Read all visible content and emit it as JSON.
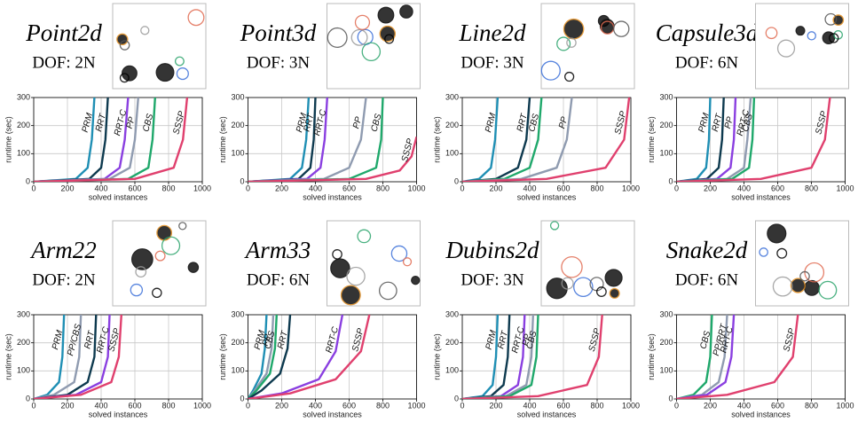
{
  "chart_data": [
    {
      "type": "line",
      "title": "Point2d",
      "subtitle": "DOF: 2N",
      "x_label": "solved instances",
      "y_label": "runtime (sec)",
      "xlim": [
        0,
        1000
      ],
      "xticks": [
        0,
        200,
        400,
        600,
        800,
        1000
      ],
      "ylim": [
        0,
        300
      ],
      "yticks": [
        0,
        100,
        200,
        300
      ],
      "grid": true,
      "series": [
        {
          "name": "PRM",
          "color": "#1f8fb4",
          "x": [
            0,
            250,
            320,
            345,
            360
          ],
          "values": [
            0,
            10,
            50,
            150,
            300
          ]
        },
        {
          "name": "RRT",
          "color": "#0e3a4f",
          "x": [
            0,
            330,
            400,
            425,
            440
          ],
          "values": [
            0,
            10,
            50,
            150,
            300
          ]
        },
        {
          "name": "RRT-C",
          "color": "#8a3fe0",
          "x": [
            0,
            420,
            510,
            540,
            560
          ],
          "values": [
            0,
            10,
            50,
            150,
            300
          ]
        },
        {
          "name": "PP",
          "color": "#8f9bb0",
          "x": [
            0,
            450,
            570,
            600,
            620
          ],
          "values": [
            0,
            10,
            50,
            150,
            300
          ]
        },
        {
          "name": "CBS",
          "color": "#1fa86b",
          "x": [
            0,
            560,
            680,
            705,
            720
          ],
          "values": [
            0,
            10,
            50,
            150,
            300
          ]
        },
        {
          "name": "SSSP",
          "color": "#e0406e",
          "x": [
            0,
            600,
            830,
            885,
            910
          ],
          "values": [
            0,
            10,
            50,
            150,
            300
          ]
        }
      ]
    },
    {
      "type": "line",
      "title": "Point3d",
      "subtitle": "DOF: 3N",
      "x_label": "solved instances",
      "y_label": "runtime (sec)",
      "xlim": [
        0,
        1000
      ],
      "xticks": [
        0,
        200,
        400,
        600,
        800,
        1000
      ],
      "ylim": [
        0,
        300
      ],
      "yticks": [
        0,
        100,
        200,
        300
      ],
      "grid": true,
      "series": [
        {
          "name": "PRM",
          "color": "#1f8fb4",
          "x": [
            0,
            250,
            320,
            345,
            360
          ],
          "values": [
            0,
            10,
            50,
            150,
            300
          ]
        },
        {
          "name": "RRT",
          "color": "#0e3a4f",
          "x": [
            0,
            300,
            370,
            390,
            400
          ],
          "values": [
            0,
            10,
            50,
            150,
            300
          ]
        },
        {
          "name": "RRT-C",
          "color": "#8a3fe0",
          "x": [
            0,
            350,
            430,
            455,
            470
          ],
          "values": [
            0,
            10,
            50,
            150,
            300
          ]
        },
        {
          "name": "PP",
          "color": "#8f9bb0",
          "x": [
            0,
            450,
            600,
            670,
            700
          ],
          "values": [
            0,
            10,
            50,
            150,
            300
          ]
        },
        {
          "name": "CBS",
          "color": "#1fa86b",
          "x": [
            0,
            600,
            760,
            790,
            800
          ],
          "values": [
            0,
            10,
            50,
            150,
            300
          ]
        },
        {
          "name": "SSSP",
          "color": "#e0406e",
          "x": [
            0,
            700,
            900,
            970,
            1000
          ],
          "values": [
            0,
            10,
            40,
            90,
            160
          ]
        }
      ]
    },
    {
      "type": "line",
      "title": "Line2d",
      "subtitle": "DOF: 3N",
      "x_label": "solved instances",
      "y_label": "runtime (sec)",
      "xlim": [
        0,
        1000
      ],
      "xticks": [
        0,
        200,
        400,
        600,
        800,
        1000
      ],
      "ylim": [
        0,
        300
      ],
      "yticks": [
        0,
        100,
        200,
        300
      ],
      "grid": true,
      "series": [
        {
          "name": "PRM",
          "color": "#1f8fb4",
          "x": [
            0,
            100,
            170,
            195,
            210
          ],
          "values": [
            0,
            10,
            50,
            150,
            300
          ]
        },
        {
          "name": "RRT",
          "color": "#0e3a4f",
          "x": [
            0,
            200,
            330,
            380,
            400
          ],
          "values": [
            0,
            10,
            50,
            150,
            300
          ]
        },
        {
          "name": "CBS",
          "color": "#1fa86b",
          "x": [
            0,
            250,
            400,
            450,
            470
          ],
          "values": [
            0,
            10,
            50,
            150,
            300
          ]
        },
        {
          "name": "PP",
          "color": "#8f9bb0",
          "x": [
            0,
            350,
            560,
            620,
            650
          ],
          "values": [
            0,
            10,
            50,
            150,
            300
          ]
        },
        {
          "name": "SSSP",
          "color": "#e0406e",
          "x": [
            0,
            500,
            850,
            960,
            990
          ],
          "values": [
            0,
            10,
            50,
            150,
            300
          ]
        }
      ]
    },
    {
      "type": "line",
      "title": "Capsule3d",
      "subtitle": "DOF: 6N",
      "x_label": "solved instances",
      "y_label": "runtime (sec)",
      "xlim": [
        0,
        1000
      ],
      "xticks": [
        0,
        200,
        400,
        600,
        800,
        1000
      ],
      "ylim": [
        0,
        300
      ],
      "yticks": [
        0,
        100,
        200,
        300
      ],
      "grid": true,
      "series": [
        {
          "name": "PRM",
          "color": "#1f8fb4",
          "x": [
            0,
            120,
            175,
            192,
            200
          ],
          "values": [
            0,
            10,
            50,
            150,
            300
          ]
        },
        {
          "name": "RRT",
          "color": "#0e3a4f",
          "x": [
            0,
            180,
            250,
            270,
            280
          ],
          "values": [
            0,
            10,
            50,
            150,
            300
          ]
        },
        {
          "name": "PP",
          "color": "#8a3fe0",
          "x": [
            0,
            240,
            320,
            340,
            350
          ],
          "values": [
            0,
            10,
            50,
            150,
            300
          ]
        },
        {
          "name": "RRT-C",
          "color": "#8f9bb0",
          "x": [
            0,
            300,
            400,
            420,
            440
          ],
          "values": [
            0,
            10,
            50,
            150,
            300
          ]
        },
        {
          "name": "CBS",
          "color": "#1fa86b",
          "x": [
            0,
            330,
            430,
            450,
            460
          ],
          "values": [
            0,
            10,
            50,
            150,
            300
          ]
        },
        {
          "name": "SSSP",
          "color": "#e0406e",
          "x": [
            0,
            500,
            800,
            880,
            910
          ],
          "values": [
            0,
            10,
            50,
            150,
            300
          ]
        }
      ]
    },
    {
      "type": "line",
      "title": "Arm22",
      "subtitle": "DOF: 2N",
      "x_label": "solved instances",
      "y_label": "runtime (sec)",
      "xlim": [
        0,
        1000
      ],
      "xticks": [
        0,
        200,
        400,
        600,
        800,
        1000
      ],
      "ylim": [
        0,
        300
      ],
      "yticks": [
        0,
        100,
        200,
        300
      ],
      "grid": true,
      "series": [
        {
          "name": "PRM",
          "color": "#1f8fb4",
          "x": [
            0,
            80,
            150,
            170,
            180
          ],
          "values": [
            0,
            15,
            60,
            150,
            300
          ]
        },
        {
          "name": "PP/CBS",
          "color": "#8f9bb0",
          "x": [
            0,
            120,
            240,
            270,
            280
          ],
          "values": [
            0,
            15,
            60,
            150,
            300
          ]
        },
        {
          "name": "RRT",
          "color": "#0e3a4f",
          "x": [
            0,
            200,
            320,
            360,
            370
          ],
          "values": [
            0,
            15,
            60,
            150,
            300
          ]
        },
        {
          "name": "RRT-C",
          "color": "#8a3fe0",
          "x": [
            0,
            250,
            400,
            440,
            450
          ],
          "values": [
            0,
            15,
            60,
            150,
            300
          ]
        },
        {
          "name": "SSSP",
          "color": "#e0406e",
          "x": [
            0,
            280,
            460,
            505,
            520
          ],
          "values": [
            0,
            15,
            60,
            150,
            300
          ]
        }
      ]
    },
    {
      "type": "line",
      "title": "Arm33",
      "subtitle": "DOF: 6N",
      "x_label": "solved instances",
      "y_label": "runtime (sec)",
      "xlim": [
        0,
        1000
      ],
      "xticks": [
        0,
        200,
        400,
        600,
        800,
        1000
      ],
      "ylim": [
        0,
        300
      ],
      "yticks": [
        0,
        100,
        200,
        300
      ],
      "grid": true,
      "series": [
        {
          "name": "PRM",
          "color": "#1f8fb4",
          "x": [
            0,
            30,
            80,
            100,
            110
          ],
          "values": [
            0,
            30,
            90,
            180,
            300
          ]
        },
        {
          "name": "PP",
          "color": "#8f9bb0",
          "x": [
            0,
            40,
            110,
            140,
            150
          ],
          "values": [
            0,
            30,
            90,
            180,
            300
          ]
        },
        {
          "name": "CBS",
          "color": "#1fa86b",
          "x": [
            0,
            50,
            130,
            160,
            170
          ],
          "values": [
            0,
            30,
            90,
            180,
            300
          ]
        },
        {
          "name": "RRT",
          "color": "#0e3a4f",
          "x": [
            0,
            80,
            190,
            235,
            250
          ],
          "values": [
            0,
            30,
            90,
            180,
            300
          ]
        },
        {
          "name": "RRT-C",
          "color": "#8a3fe0",
          "x": [
            0,
            200,
            420,
            520,
            560
          ],
          "values": [
            0,
            20,
            70,
            170,
            300
          ]
        },
        {
          "name": "SSSP",
          "color": "#e0406e",
          "x": [
            0,
            250,
            520,
            670,
            720
          ],
          "values": [
            0,
            20,
            70,
            170,
            300
          ]
        }
      ]
    },
    {
      "type": "line",
      "title": "Dubins2d",
      "subtitle": "DOF: 3N",
      "x_label": "solved instances",
      "y_label": "runtime (sec)",
      "xlim": [
        0,
        1000
      ],
      "xticks": [
        0,
        200,
        400,
        600,
        800,
        1000
      ],
      "ylim": [
        0,
        300
      ],
      "yticks": [
        0,
        100,
        200,
        300
      ],
      "grid": true,
      "series": [
        {
          "name": "PRM",
          "color": "#1f8fb4",
          "x": [
            0,
            120,
            180,
            200,
            210
          ],
          "values": [
            0,
            10,
            50,
            150,
            300
          ]
        },
        {
          "name": "RRT",
          "color": "#0e3a4f",
          "x": [
            0,
            170,
            245,
            270,
            280
          ],
          "values": [
            0,
            10,
            50,
            150,
            300
          ]
        },
        {
          "name": "RRT-C",
          "color": "#8a3fe0",
          "x": [
            0,
            230,
            330,
            360,
            370
          ],
          "values": [
            0,
            10,
            50,
            150,
            300
          ]
        },
        {
          "name": "PP",
          "color": "#8f9bb0",
          "x": [
            0,
            260,
            380,
            410,
            420
          ],
          "values": [
            0,
            10,
            50,
            150,
            300
          ]
        },
        {
          "name": "CBS",
          "color": "#1fa86b",
          "x": [
            0,
            280,
            410,
            440,
            450
          ],
          "values": [
            0,
            10,
            50,
            150,
            300
          ]
        },
        {
          "name": "SSSP",
          "color": "#e0406e",
          "x": [
            0,
            450,
            740,
            810,
            830
          ],
          "values": [
            0,
            10,
            50,
            150,
            300
          ]
        }
      ]
    },
    {
      "type": "line",
      "title": "Snake2d",
      "subtitle": "DOF: 6N",
      "x_label": "solved instances",
      "y_label": "runtime (sec)",
      "xlim": [
        0,
        1000
      ],
      "xticks": [
        0,
        200,
        400,
        600,
        800,
        1000
      ],
      "ylim": [
        0,
        300
      ],
      "yticks": [
        0,
        100,
        200,
        300
      ],
      "grid": true,
      "series": [
        {
          "name": "CBS",
          "color": "#1fa86b",
          "x": [
            0,
            100,
            175,
            200,
            210
          ],
          "values": [
            0,
            15,
            60,
            150,
            300
          ]
        },
        {
          "name": "PP/RRT",
          "color": "#8f9bb0",
          "x": [
            0,
            150,
            250,
            285,
            300
          ],
          "values": [
            0,
            15,
            60,
            150,
            300
          ]
        },
        {
          "name": "RRT-C",
          "color": "#8a3fe0",
          "x": [
            0,
            180,
            290,
            325,
            340
          ],
          "values": [
            0,
            15,
            60,
            150,
            300
          ]
        },
        {
          "name": "SSSP",
          "color": "#e0406e",
          "x": [
            0,
            300,
            580,
            690,
            720
          ],
          "values": [
            0,
            15,
            60,
            150,
            300
          ]
        }
      ]
    }
  ]
}
